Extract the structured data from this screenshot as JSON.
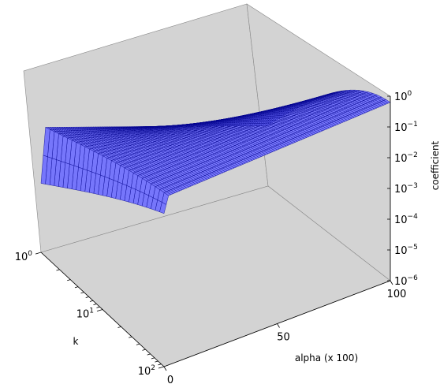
{
  "chart_data": {
    "type": "surface3d",
    "title": "",
    "xlabel": "alpha (x 100)",
    "ylabel": "k",
    "zlabel": "coefficient",
    "x_ticks": [
      {
        "value": 0,
        "label": "0"
      },
      {
        "value": 50,
        "label": "50"
      },
      {
        "value": 100,
        "label": "100"
      }
    ],
    "y_ticks": [
      {
        "value": 1,
        "base": "10",
        "exp": "0"
      },
      {
        "value": 10,
        "base": "10",
        "exp": "1"
      },
      {
        "value": 100,
        "base": "10",
        "exp": "2"
      }
    ],
    "z_ticks": [
      {
        "value": 1,
        "base": "10",
        "exp": "0"
      },
      {
        "value": 0.1,
        "base": "10",
        "exp": "−1"
      },
      {
        "value": 0.01,
        "base": "10",
        "exp": "−2"
      },
      {
        "value": 0.001,
        "base": "10",
        "exp": "−3"
      },
      {
        "value": 0.0001,
        "base": "10",
        "exp": "−4"
      },
      {
        "value": 1e-05,
        "base": "10",
        "exp": "−5"
      },
      {
        "value": 1e-06,
        "base": "10",
        "exp": "−6"
      }
    ],
    "xlim": [
      0,
      100
    ],
    "ylim": [
      1,
      100
    ],
    "y_scale": "log",
    "z_scale": "log",
    "zlim": [
      1e-06,
      1
    ],
    "surface_color": "#6b6bff",
    "edge_color": "#00008b",
    "pane_color": "#d3d3d3",
    "grid": false
  }
}
